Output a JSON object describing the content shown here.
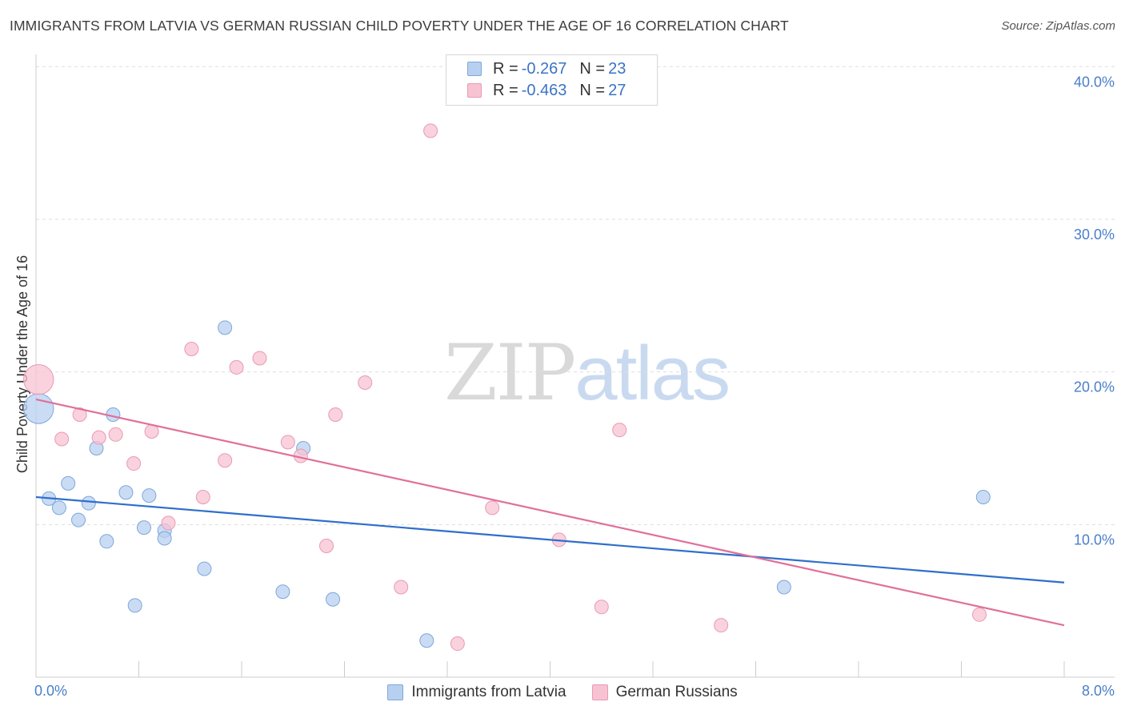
{
  "header": {
    "title": "IMMIGRANTS FROM LATVIA VS GERMAN RUSSIAN CHILD POVERTY UNDER THE AGE OF 16 CORRELATION CHART",
    "source": "Source: ZipAtlas.com"
  },
  "watermark": {
    "zip": "ZIP",
    "atlas": "atlas"
  },
  "legend": {
    "rows": [
      {
        "r_label": "R =",
        "r_value": "-0.267",
        "n_label": "N =",
        "n_value": "23"
      },
      {
        "r_label": "R =",
        "r_value": "-0.463",
        "n_label": "N =",
        "n_value": "27"
      }
    ]
  },
  "colors": {
    "blue_fill": "#b8d0f0",
    "blue_stroke": "#7ea6dc",
    "blue_line": "#2f6fcb",
    "pink_fill": "#f7c3d3",
    "pink_stroke": "#e99ab3",
    "pink_line": "#e0709a",
    "grid": "#dddddd",
    "tick_text": "#4a7fc9"
  },
  "chart_data": {
    "type": "scatter",
    "ylabel": "Child Poverty Under the Age of 16",
    "xlim": [
      0,
      8
    ],
    "ylim": [
      0,
      40.8
    ],
    "x_tick_labels": [
      "0.0%",
      "8.0%"
    ],
    "y_ticks": [
      10,
      20,
      30,
      40
    ],
    "y_tick_labels": [
      "10.0%",
      "20.0%",
      "30.0%",
      "40.0%"
    ],
    "grid": true,
    "series": [
      {
        "name": "Immigrants from Latvia",
        "color": "blue",
        "trend": [
          [
            0,
            11.8
          ],
          [
            8,
            6.2
          ]
        ],
        "points": [
          [
            0.02,
            17.6,
            2.2
          ],
          [
            0.1,
            11.7,
            1
          ],
          [
            0.18,
            11.1,
            1
          ],
          [
            0.25,
            12.7,
            1
          ],
          [
            0.33,
            10.3,
            1
          ],
          [
            0.41,
            11.4,
            1
          ],
          [
            0.47,
            15.0,
            1
          ],
          [
            0.55,
            8.9,
            1
          ],
          [
            0.6,
            17.2,
            1
          ],
          [
            0.7,
            12.1,
            1
          ],
          [
            0.77,
            4.7,
            1
          ],
          [
            0.84,
            9.8,
            1
          ],
          [
            0.88,
            11.9,
            1
          ],
          [
            1.0,
            9.6,
            1
          ],
          [
            1.0,
            9.1,
            1
          ],
          [
            1.31,
            7.1,
            1
          ],
          [
            1.47,
            22.9,
            1
          ],
          [
            1.92,
            5.6,
            1
          ],
          [
            2.08,
            15.0,
            1
          ],
          [
            2.31,
            5.1,
            1
          ],
          [
            3.04,
            2.4,
            1
          ],
          [
            5.82,
            5.9,
            1
          ],
          [
            7.37,
            11.8,
            1
          ]
        ]
      },
      {
        "name": "German Russians",
        "color": "pink",
        "trend": [
          [
            0,
            18.2
          ],
          [
            8,
            3.4
          ]
        ],
        "points": [
          [
            0.02,
            19.5,
            2.2
          ],
          [
            0.2,
            15.6,
            1
          ],
          [
            0.34,
            17.2,
            1
          ],
          [
            0.49,
            15.7,
            1
          ],
          [
            0.62,
            15.9,
            1
          ],
          [
            0.76,
            14.0,
            1
          ],
          [
            0.9,
            16.1,
            1
          ],
          [
            1.03,
            10.1,
            1
          ],
          [
            1.21,
            21.5,
            1
          ],
          [
            1.3,
            11.8,
            1
          ],
          [
            1.47,
            14.2,
            1
          ],
          [
            1.56,
            20.3,
            1
          ],
          [
            1.74,
            20.9,
            1
          ],
          [
            1.96,
            15.4,
            1
          ],
          [
            2.06,
            14.5,
            1
          ],
          [
            2.26,
            8.6,
            1
          ],
          [
            2.33,
            17.2,
            1
          ],
          [
            2.56,
            19.3,
            1
          ],
          [
            2.84,
            5.9,
            1
          ],
          [
            3.07,
            35.8,
            1
          ],
          [
            3.28,
            2.2,
            1
          ],
          [
            3.55,
            11.1,
            1
          ],
          [
            4.07,
            9.0,
            1
          ],
          [
            4.4,
            4.6,
            1
          ],
          [
            4.54,
            16.2,
            1
          ],
          [
            5.33,
            3.4,
            1
          ],
          [
            7.34,
            4.1,
            1
          ]
        ]
      }
    ]
  }
}
